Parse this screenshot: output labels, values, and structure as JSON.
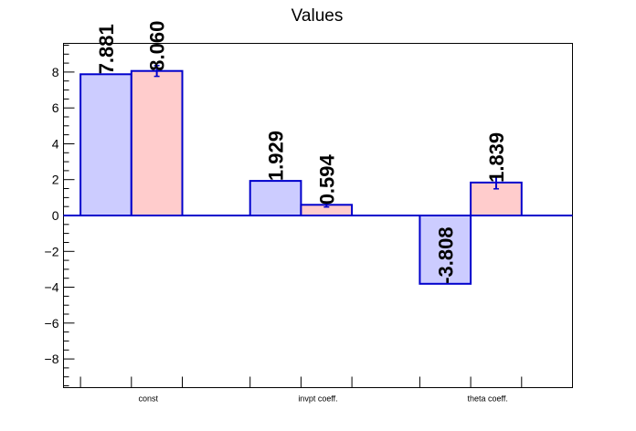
{
  "chart_data": {
    "type": "bar",
    "title": "Values",
    "categories": [
      "const",
      "invpt coeff.",
      "theta coeff."
    ],
    "series": [
      {
        "values": [
          7.881,
          1.929,
          -3.808
        ],
        "labels": [
          "7.881",
          "1.929",
          "-3.808"
        ],
        "errors": [
          0,
          0,
          0
        ],
        "color": "#ccccff"
      },
      {
        "values": [
          8.06,
          0.594,
          1.839
        ],
        "labels": [
          "8.060",
          "0.594",
          "1.839"
        ],
        "errors": [
          0.3,
          0.12,
          0.35
        ],
        "color": "#ffcccc"
      }
    ],
    "y_ticks": [
      "8",
      "6",
      "4",
      "2",
      "0",
      "−2",
      "−4",
      "−6",
      "−8"
    ],
    "ylim": [
      -9.6,
      9.6
    ],
    "xlabel": "",
    "ylabel": "",
    "grid": false,
    "bar_edge_color": "#0000cc",
    "axis_color": "#000000"
  }
}
